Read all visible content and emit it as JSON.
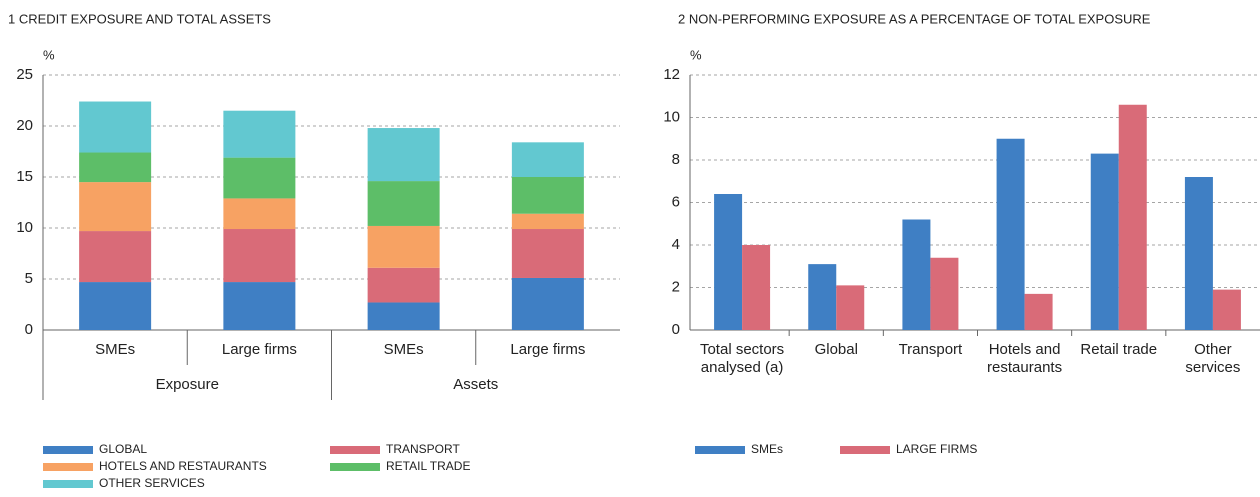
{
  "chart_data": [
    {
      "type": "stacked_bar",
      "title": "1  CREDIT EXPOSURE AND TOTAL ASSETS",
      "y_label": "%",
      "categories": [
        "SMEs",
        "Large firms",
        "SMEs",
        "Large firms"
      ],
      "groups": [
        "Exposure",
        "Assets"
      ],
      "series": [
        {
          "name": "GLOBAL",
          "color": "#3f7fc4",
          "values": [
            4.7,
            4.7,
            2.7,
            5.1
          ]
        },
        {
          "name": "TRANSPORT",
          "color": "#d96b78",
          "values": [
            5.0,
            5.2,
            3.4,
            4.8
          ]
        },
        {
          "name": "HOTELS AND RESTAURANTS",
          "color": "#f7a263",
          "values": [
            4.8,
            3.0,
            4.1,
            1.5
          ]
        },
        {
          "name": "RETAIL TRADE",
          "color": "#5dbe68",
          "values": [
            2.9,
            4.0,
            4.4,
            3.6
          ]
        },
        {
          "name": "OTHER SERVICES",
          "color": "#62c8d0",
          "values": [
            5.0,
            4.6,
            5.2,
            3.4
          ]
        }
      ],
      "ylim": [
        0,
        25
      ],
      "yticks": [
        0,
        5,
        10,
        15,
        20,
        25
      ],
      "grid": true
    },
    {
      "type": "bar",
      "title": "2  NON-PERFORMING EXPOSURE AS A PERCENTAGE OF TOTAL EXPOSURE",
      "y_label": "%",
      "categories": [
        "Total sectors analysed (a)",
        "Global",
        "Transport",
        "Hotels and restaurants",
        "Retail trade",
        "Other services"
      ],
      "series": [
        {
          "name": "SMEs",
          "color": "#3f7fc4",
          "values": [
            6.4,
            3.1,
            5.2,
            9.0,
            8.3,
            7.2
          ]
        },
        {
          "name": "LARGE FIRMS",
          "color": "#d96b78",
          "values": [
            4.0,
            2.1,
            3.4,
            1.7,
            10.6,
            1.9
          ]
        }
      ],
      "ylim": [
        0,
        12
      ],
      "yticks": [
        0,
        2,
        4,
        6,
        8,
        10,
        12
      ],
      "grid": true
    }
  ]
}
